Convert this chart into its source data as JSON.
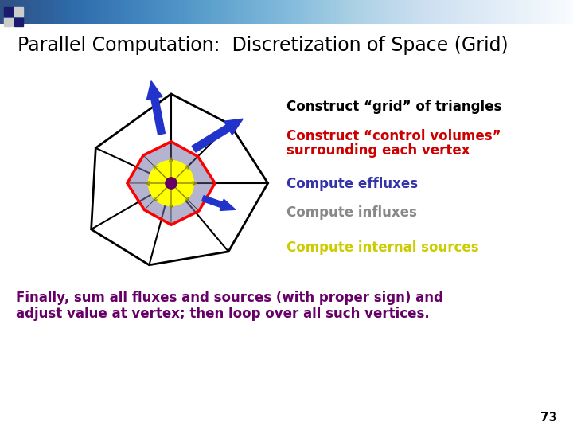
{
  "title": "Parallel Computation:  Discretization of Space (Grid)",
  "title_color": "#000000",
  "title_fontsize": 17,
  "bg_color": "#ffffff",
  "bullet1": "Construct “grid” of triangles",
  "bullet1_color": "#000000",
  "bullet2_line1": "Construct “control volumes”",
  "bullet2_line2": "surrounding each vertex",
  "bullet2_color": "#cc0000",
  "bullet3": "Compute effluxes",
  "bullet3_color": "#3333aa",
  "bullet4": "Compute influxes",
  "bullet4_color": "#888888",
  "bullet5": "Compute internal sources",
  "bullet5_color": "#cccc00",
  "footer_line1": "Finally, sum all fluxes and sources (with proper sign) and",
  "footer_line2": "adjust value at vertex; then loop over all such vertices.",
  "footer_color": "#660066",
  "page_num": "73",
  "page_num_color": "#000000",
  "bullet_fontsize": 12,
  "footer_fontsize": 12
}
